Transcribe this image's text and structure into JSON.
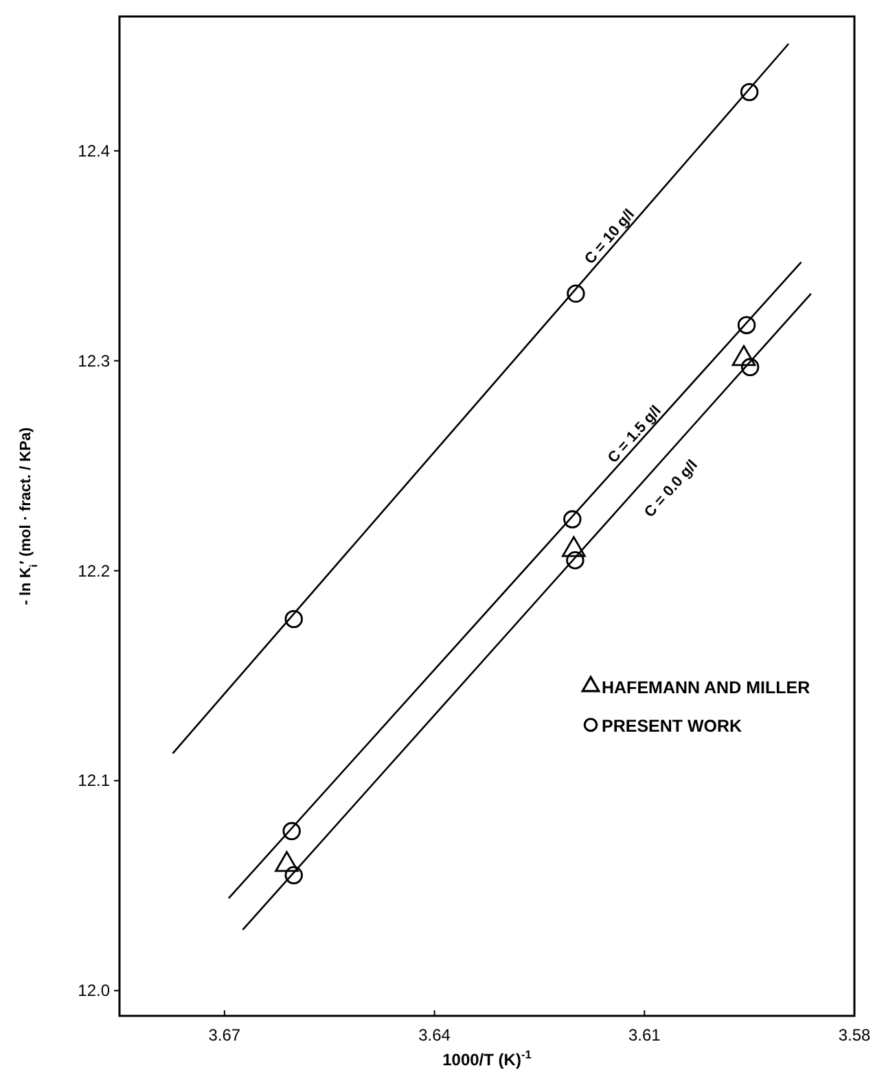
{
  "chart_data": {
    "type": "scatter",
    "xlabel": "1000/T (K)$^{-1}$",
    "ylabel": "- ln K$_{i}$′ (mol · fract. / KPa)",
    "xlim": [
      3.685,
      3.58
    ],
    "ylim": [
      11.988,
      12.464
    ],
    "xticks": [
      3.67,
      3.64,
      3.61,
      3.58
    ],
    "yticks": [
      {
        "value": 12.0,
        "label": "12.0"
      },
      12.1,
      12.2,
      12.3,
      12.4
    ],
    "grid": false,
    "legend": "right",
    "series": [
      {
        "type": "line",
        "name": "C = 10 g/l",
        "color": "#000000",
        "marker": "none",
        "line_style": "solid",
        "x": [
          3.6774,
          3.5894
        ],
        "values": [
          12.113,
          12.451
        ]
      },
      {
        "type": "line",
        "name": "C = 1.5 g/l",
        "color": "#000000",
        "marker": "none",
        "line_style": "solid",
        "x": [
          3.6694,
          3.5876
        ],
        "values": [
          12.044,
          12.347
        ]
      },
      {
        "type": "line",
        "name": "C = 0.0 g/l",
        "color": "#000000",
        "marker": "none",
        "line_style": "solid",
        "x": [
          3.6674,
          3.5862
        ],
        "values": [
          12.029,
          12.332
        ]
      },
      {
        "type": "scatter",
        "name": "HAFEMANN AND MILLER",
        "color": "#000000",
        "marker": "triangle",
        "x": [
          3.6611,
          3.6201,
          3.5958
        ],
        "values": [
          12.06,
          12.21,
          12.301
        ]
      },
      {
        "name": "PRESENT WORK",
        "color": "#000000",
        "marker": "circle",
        "x": [
          3.6601,
          3.6198,
          3.595,
          3.6604,
          3.6203,
          3.5954,
          3.6601,
          3.6199,
          3.5949
        ],
        "values": [
          12.177,
          12.332,
          12.428,
          12.076,
          12.2245,
          12.317,
          12.055,
          12.205,
          12.297
        ]
      }
    ]
  }
}
